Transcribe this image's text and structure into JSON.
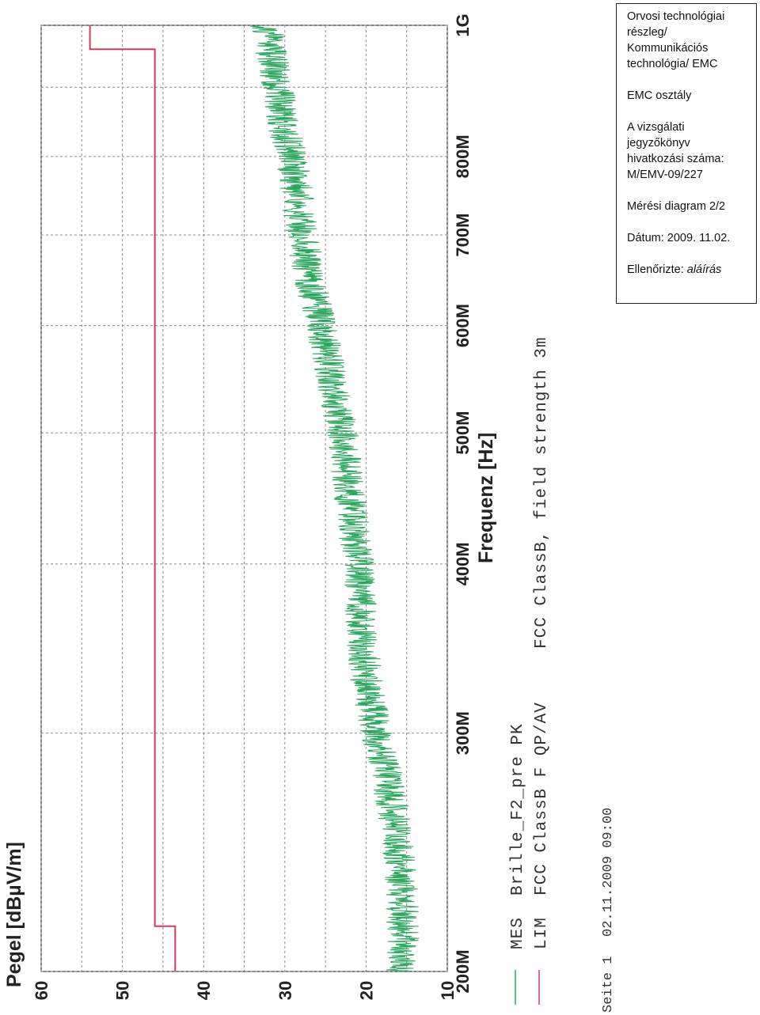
{
  "info_box": {
    "org_line1": "Orvosi technológiai",
    "org_line2": "részleg/",
    "org_line3": "Kommunikációs",
    "org_line4": "technológia/ EMC",
    "dept": "EMC osztály",
    "ref_line1": "A vizsgálati",
    "ref_line2": "jegyzőkönyv",
    "ref_line3": "hivatkozási száma:",
    "ref_number": "M/EMV-09/227",
    "diagram": "Mérési diagram 2/2",
    "date": "Dátum: 2009. 11.02.",
    "checked_label": "Ellenőrizte:",
    "signature": "aláírás"
  },
  "legend": {
    "mes_tag": "MES",
    "mes_name": "Brille_F2_pre PK",
    "lim_tag": "LIM",
    "lim_name": "FCC ClassB F QP/AV",
    "standard": "FCC ClassB, field strength 3m"
  },
  "footer": {
    "page": "Seite 1",
    "datetime": "02.11.2009   09:00"
  },
  "colors": {
    "measurement": "#2aa75c",
    "limit": "#d63a55",
    "grid": "#888888"
  },
  "chart_data": {
    "type": "line",
    "rotation": "rotated 90° counter-clockwise",
    "xlabel": "Frequenz [Hz]",
    "ylabel": "Pegel [dBµV/m]",
    "x_scale": "log",
    "xlim": [
      200000000,
      1000000000
    ],
    "ylim": [
      10,
      60
    ],
    "x_ticks": [
      {
        "value": 200000000,
        "label": "200M"
      },
      {
        "value": 300000000,
        "label": "300M"
      },
      {
        "value": 400000000,
        "label": "400M"
      },
      {
        "value": 500000000,
        "label": "500M"
      },
      {
        "value": 600000000,
        "label": "600M"
      },
      {
        "value": 700000000,
        "label": "700M"
      },
      {
        "value": 800000000,
        "label": "800M"
      },
      {
        "value": 1000000000,
        "label": "1G"
      }
    ],
    "y_ticks": [
      {
        "value": 10,
        "label": "10"
      },
      {
        "value": 20,
        "label": "20"
      },
      {
        "value": 30,
        "label": "30"
      },
      {
        "value": 40,
        "label": "40"
      },
      {
        "value": 50,
        "label": "50"
      },
      {
        "value": 60,
        "label": "60"
      }
    ],
    "grid": true,
    "series": [
      {
        "name": "Brille_F2_pre PK",
        "color": "#2aa75c",
        "noise_amplitude_db": 2,
        "x": [
          200000000,
          220000000,
          240000000,
          260000000,
          280000000,
          300000000,
          330000000,
          360000000,
          400000000,
          450000000,
          500000000,
          550000000,
          600000000,
          650000000,
          700000000,
          750000000,
          800000000,
          850000000,
          900000000,
          950000000,
          1000000000
        ],
        "y": [
          15.5,
          15.5,
          15.8,
          16.5,
          17.5,
          18.8,
          20.0,
          20.6,
          21.0,
          22.0,
          23.0,
          24.3,
          25.6,
          26.9,
          27.9,
          28.5,
          29.2,
          30.3,
          30.9,
          31.6,
          32.3
        ]
      },
      {
        "name": "FCC ClassB F QP/AV",
        "color": "#d63a55",
        "step": true,
        "x": [
          200000000,
          216000000,
          216000000,
          960000000,
          960000000,
          1000000000
        ],
        "y": [
          43.5,
          43.5,
          46.0,
          46.0,
          54.0,
          54.0
        ]
      }
    ]
  }
}
